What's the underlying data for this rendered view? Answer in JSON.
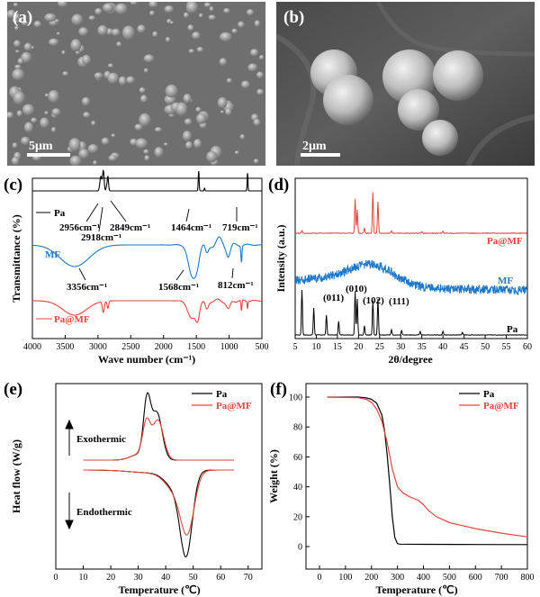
{
  "panels": {
    "a": {
      "label": "(a)",
      "scale": "5μm"
    },
    "b": {
      "label": "(b)",
      "scale": "2μm"
    },
    "c": {
      "label": "(c)"
    },
    "d": {
      "label": "(d)"
    },
    "e": {
      "label": "(e)"
    },
    "f": {
      "label": "(f)"
    }
  },
  "colors": {
    "Pa": "#000000",
    "MF": "#1f77c8",
    "Pa@MF": "#e2463c"
  },
  "chart_data": [
    {
      "panel": "c",
      "type": "line",
      "xlabel": "Wave number (cm⁻¹)",
      "ylabel": "Transmittance (%)",
      "xlim": [
        4000,
        500
      ],
      "xticks": [
        4000,
        3500,
        3000,
        2500,
        2000,
        1500,
        1000,
        500
      ],
      "series": [
        {
          "name": "Pa",
          "color": "#000000"
        },
        {
          "name": "MF",
          "color": "#1f77c8"
        },
        {
          "name": "Pa@MF",
          "color": "#e2463c"
        }
      ],
      "annotations": [
        "2956cm⁻¹",
        "2918cm⁻¹",
        "2849cm⁻¹",
        "1464cm⁻¹",
        "719cm⁻¹",
        "3356cm⁻¹",
        "1568cm⁻¹",
        "812cm⁻¹"
      ],
      "annotation_x": [
        2956,
        2918,
        2849,
        1464,
        719,
        3356,
        1568,
        812
      ]
    },
    {
      "panel": "d",
      "type": "line",
      "xlabel": "2θ/degree",
      "ylabel": "Intensity (a.u.)",
      "xlim": [
        5,
        60
      ],
      "xticks": [
        5,
        10,
        15,
        20,
        25,
        30,
        35,
        40,
        45,
        50,
        55,
        60
      ],
      "series": [
        {
          "name": "Pa@MF",
          "color": "#e2463c"
        },
        {
          "name": "MF",
          "color": "#1f77c8"
        },
        {
          "name": "Pa",
          "color": "#000000"
        }
      ],
      "annotations": [
        "(011)",
        "(010)",
        "(102)",
        "(111)"
      ],
      "annotation_x": [
        19.2,
        19.7,
        23.4,
        24.6
      ]
    },
    {
      "panel": "e",
      "type": "line",
      "xlabel": "Temperature (℃)",
      "ylabel": "Heat flow (W/g)",
      "xlim": [
        0,
        75
      ],
      "xticks": [
        0,
        10,
        20,
        30,
        40,
        50,
        60,
        70
      ],
      "series": [
        {
          "name": "Pa",
          "color": "#000000"
        },
        {
          "name": "Pa@MF",
          "color": "#e2463c"
        }
      ],
      "legend": "top-right",
      "annotations": [
        "Exothermic",
        "Endothermic"
      ]
    },
    {
      "panel": "f",
      "type": "line",
      "xlabel": "Temperature (℃)",
      "ylabel": "Weight (%)",
      "xlim": [
        0,
        800
      ],
      "ylim": [
        0,
        100
      ],
      "xticks": [
        0,
        100,
        200,
        300,
        400,
        500,
        600,
        700,
        800
      ],
      "yticks": [
        0,
        20,
        40,
        60,
        80,
        100
      ],
      "series": [
        {
          "name": "Pa",
          "color": "#000000",
          "x": [
            30,
            150,
            180,
            200,
            220,
            240,
            250,
            260,
            270,
            280,
            290,
            300,
            310,
            400,
            600,
            800
          ],
          "y": [
            100,
            100,
            99.5,
            98.5,
            96,
            88,
            78,
            62,
            42,
            20,
            6,
            2,
            1.6,
            1.5,
            1.4,
            1.3
          ]
        },
        {
          "name": "Pa@MF",
          "color": "#e2463c",
          "x": [
            30,
            150,
            180,
            200,
            220,
            240,
            260,
            280,
            300,
            320,
            350,
            380,
            400,
            420,
            450,
            500,
            600,
            700,
            800
          ],
          "y": [
            100,
            99.6,
            98.5,
            96.5,
            92,
            84,
            70,
            52,
            40,
            36,
            33,
            31,
            28,
            24,
            20,
            16,
            12,
            9,
            6.5
          ]
        }
      ],
      "legend": "top-right"
    }
  ]
}
